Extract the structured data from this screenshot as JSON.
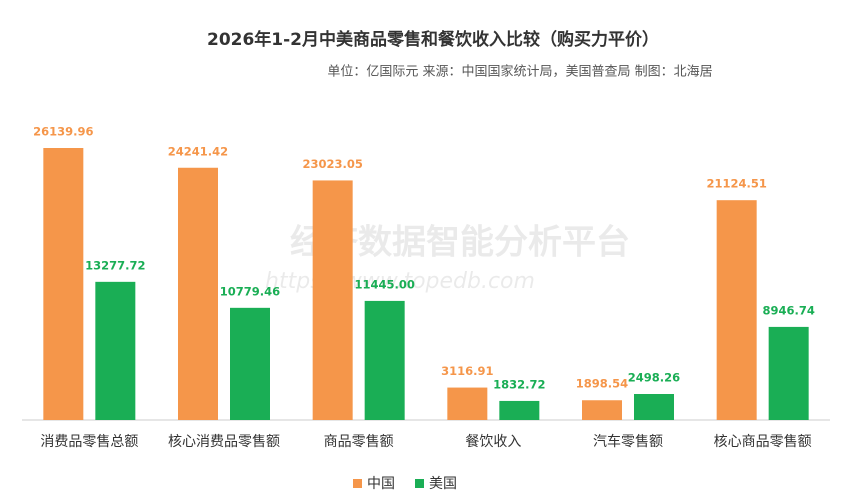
{
  "chart_data": {
    "type": "bar",
    "title": "2026年1-2月中美商品零售和餐饮收入比较（购买力平价）",
    "subtitle": "单位：亿国际元 来源：中国国家统计局，美国普查局 制图：北海居",
    "watermark": [
      "经济数据智能分析平台",
      "https://www.topedb.com"
    ],
    "categories": [
      "消费品零售总额",
      "核心消费品零售额",
      "商品零售额",
      "餐饮收入",
      "汽车零售额",
      "核心商品零售额"
    ],
    "series": [
      {
        "name": "中国",
        "color": "#f5964a",
        "values": [
          26139.96,
          24241.42,
          23023.05,
          3116.91,
          1898.54,
          21124.51
        ],
        "value_labels": [
          "26139.96",
          "24241.42",
          "23023.05",
          "3116.91",
          "1898.54",
          "21124.51"
        ]
      },
      {
        "name": "美国",
        "color": "#1aae55",
        "values": [
          13277.72,
          10779.46,
          11445.0,
          1832.72,
          2498.26,
          8946.74
        ],
        "value_labels": [
          "13277.72",
          "10779.46",
          "11445.00",
          "1832.72",
          "2498.26",
          "8946.74"
        ]
      }
    ],
    "legend": "bottom"
  }
}
